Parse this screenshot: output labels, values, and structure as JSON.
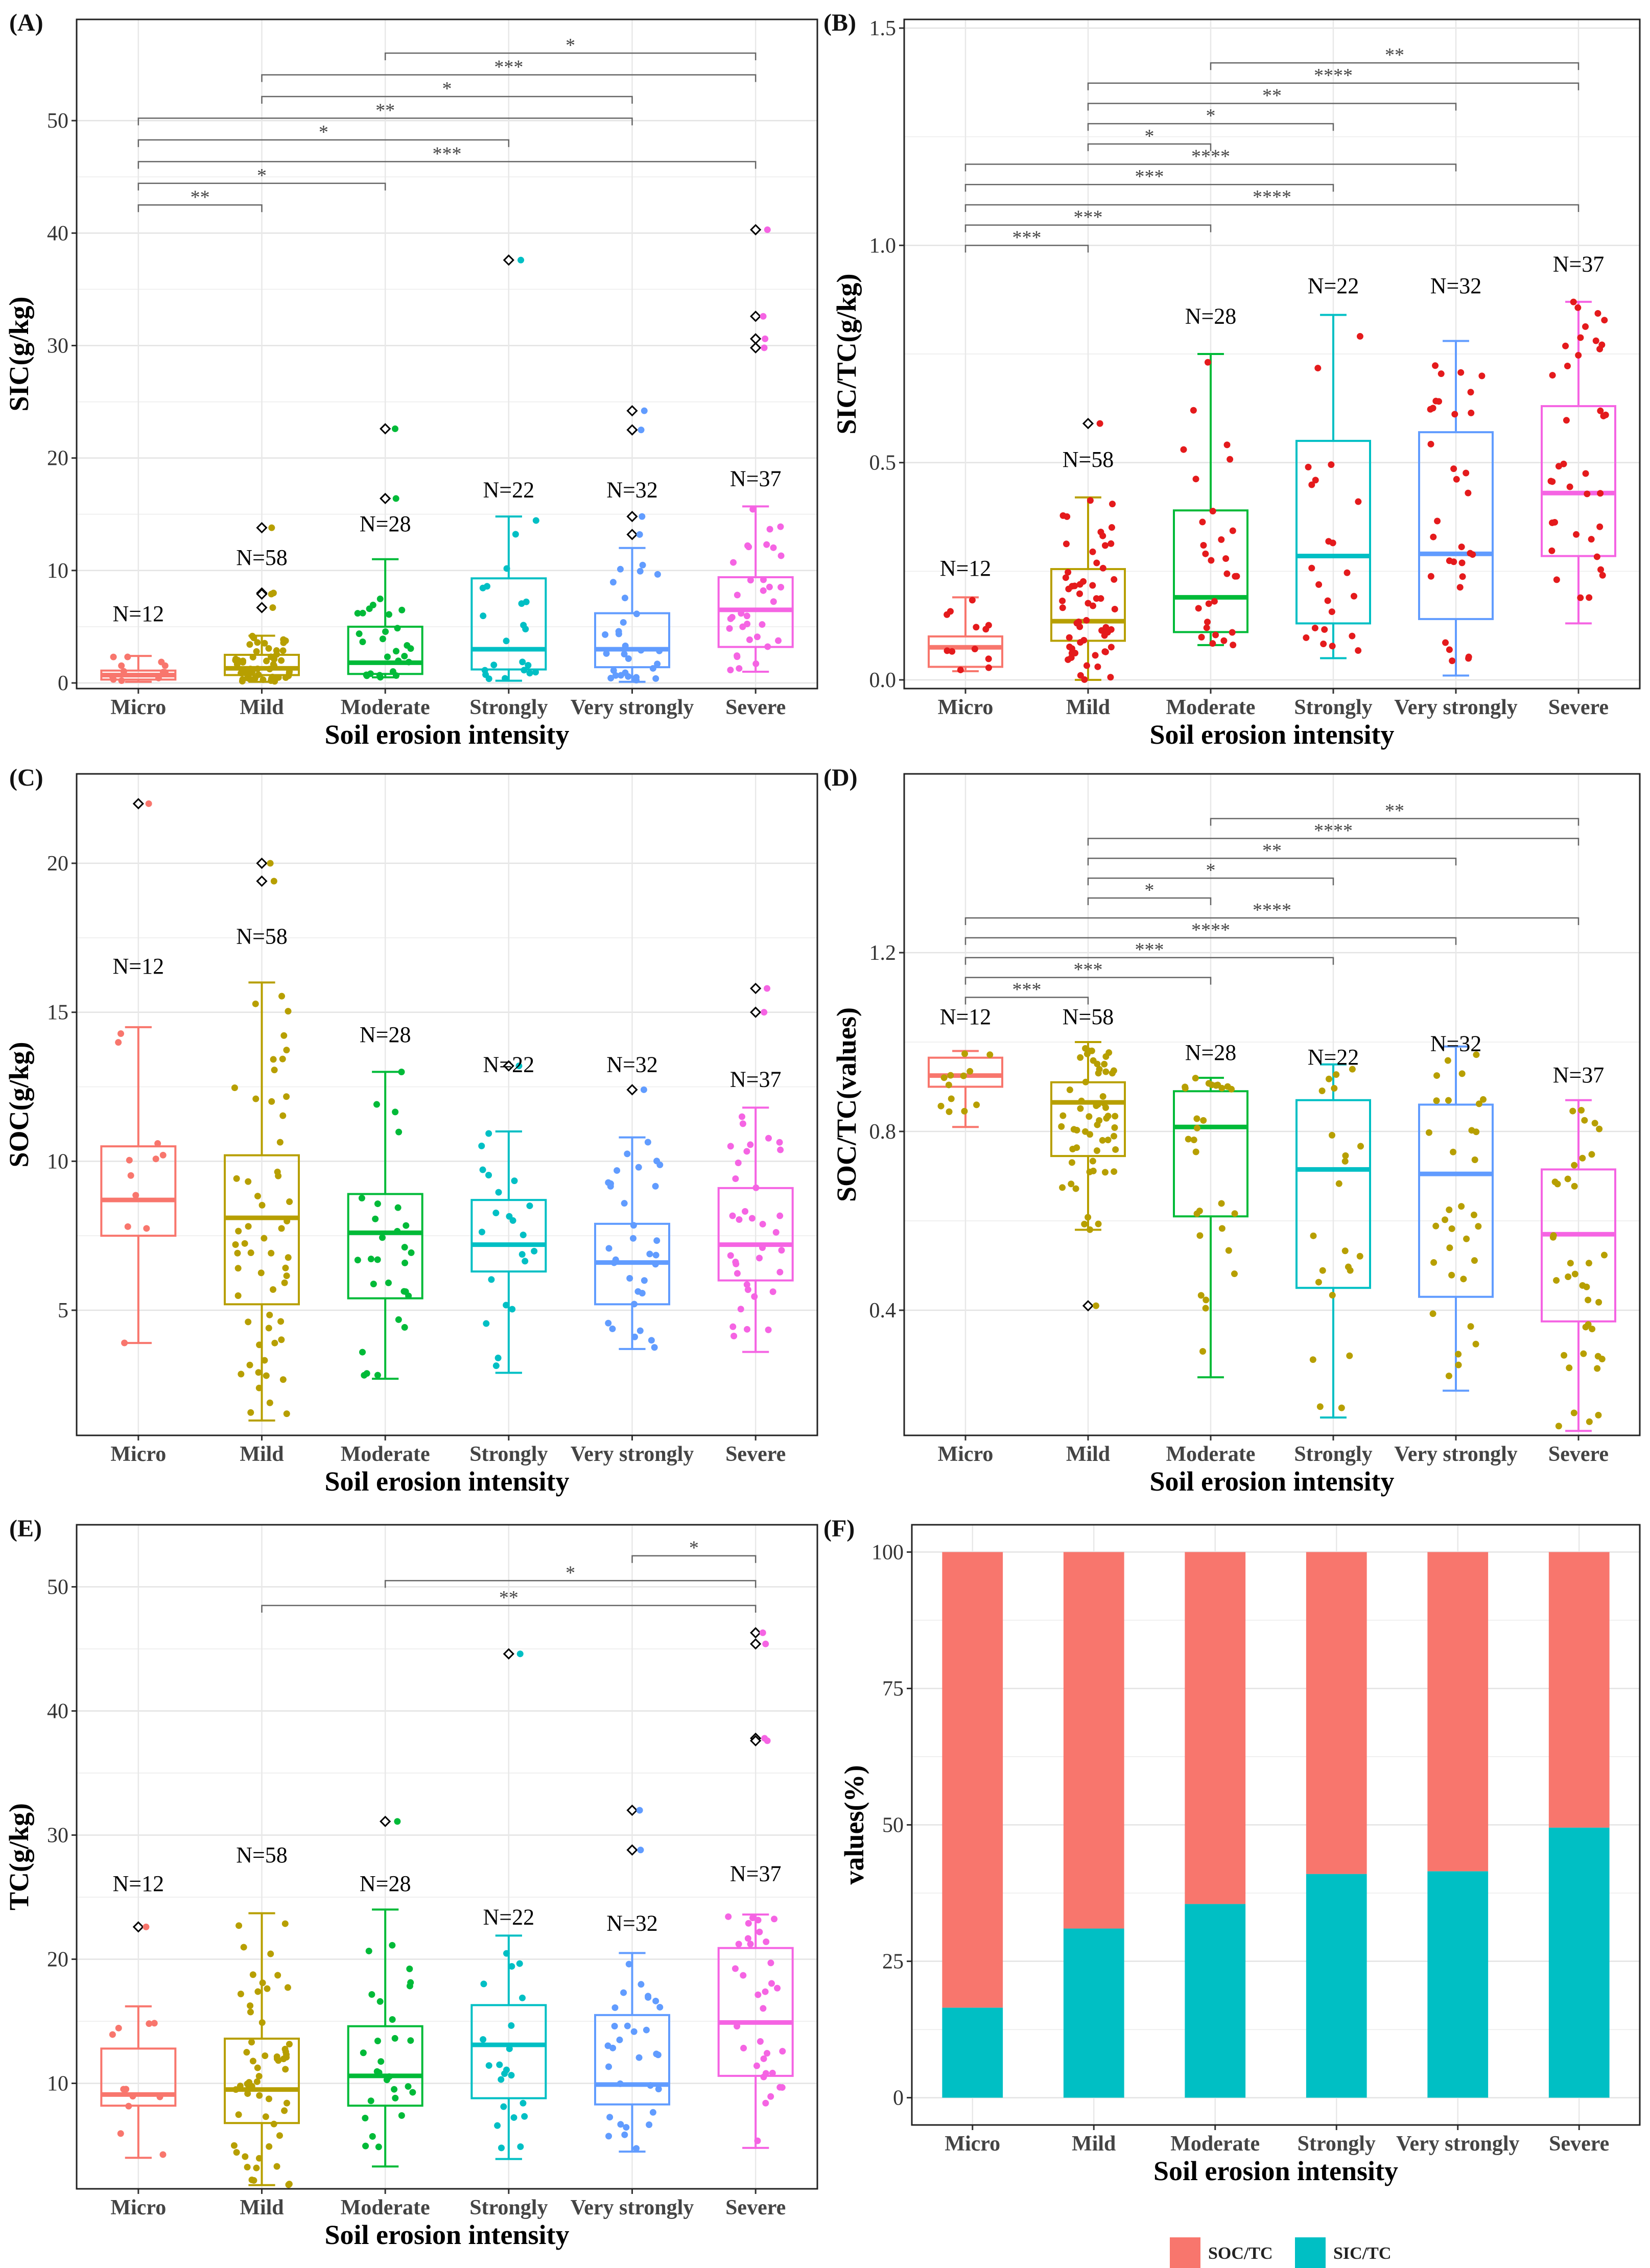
{
  "figure": {
    "categories": [
      "Micro",
      "Mild",
      "Moderate",
      "Strongly",
      "Very strongly",
      "Severe"
    ],
    "colors": [
      "#F8766D",
      "#B79F00",
      "#00BA38",
      "#00BFC4",
      "#619CFF",
      "#F564E3"
    ],
    "panel_B_point_color": "#E41A1C",
    "panel_D_point_color": "#B79F00",
    "n_counts": [
      "N=12",
      "N=58",
      "N=28",
      "N=22",
      "N=32",
      "N=37"
    ]
  },
  "chart_data": [
    {
      "panel": "(A)",
      "type": "box",
      "title": "(A)",
      "xlabel": "Soil erosion intensity",
      "ylabel": "SIC(g/kg)",
      "ylim": [
        -0.5,
        59
      ],
      "yticks": [
        0,
        10,
        20,
        30,
        40,
        50
      ],
      "n_label_y": [
        5.5,
        10.5,
        13.5,
        16.5,
        16.5,
        17.5
      ],
      "boxes": [
        {
          "q1": 0.3,
          "median": 0.7,
          "q3": 1.1,
          "wlo": 0.1,
          "whi": 2.4
        },
        {
          "q1": 0.7,
          "median": 1.3,
          "q3": 2.5,
          "wlo": 0.1,
          "whi": 4.2
        },
        {
          "q1": 0.8,
          "median": 1.8,
          "q3": 5.0,
          "wlo": 0.5,
          "whi": 11.0
        },
        {
          "q1": 1.2,
          "median": 3.0,
          "q3": 9.3,
          "wlo": 0.2,
          "whi": 14.8
        },
        {
          "q1": 1.4,
          "median": 3.0,
          "q3": 6.2,
          "wlo": 0.1,
          "whi": 12.0
        },
        {
          "q1": 3.2,
          "median": 6.5,
          "q3": 9.4,
          "wlo": 1.0,
          "whi": 15.7
        }
      ],
      "outliers": [
        [],
        [
          13.8,
          8.0,
          7.9,
          6.7
        ],
        [
          22.6,
          16.4
        ],
        [
          37.6
        ],
        [
          24.2,
          22.5,
          14.8,
          13.2
        ],
        [
          40.3,
          32.6,
          30.6,
          29.8
        ]
      ],
      "signif": [
        {
          "from": 3,
          "to": 6,
          "level": 0,
          "label": "*"
        },
        {
          "from": 2,
          "to": 6,
          "level": 1,
          "label": "***"
        },
        {
          "from": 2,
          "to": 5,
          "level": 2,
          "label": "*"
        },
        {
          "from": 1,
          "to": 5,
          "level": 3,
          "label": "**"
        },
        {
          "from": 1,
          "to": 4,
          "level": 4,
          "label": "*"
        },
        {
          "from": 1,
          "to": 6,
          "level": 5,
          "label": "***"
        },
        {
          "from": 1,
          "to": 3,
          "level": 6,
          "label": "*"
        },
        {
          "from": 1,
          "to": 2,
          "level": 7,
          "label": "**"
        }
      ],
      "sig_range": [
        56.0,
        42.5
      ]
    },
    {
      "panel": "(B)",
      "type": "box",
      "title": "(B)",
      "xlabel": "Soil erosion intensity",
      "ylabel": "SIC/TC(g/kg)",
      "ylim": [
        -0.02,
        1.52
      ],
      "yticks": [
        0.0,
        0.5,
        1.0,
        1.5
      ],
      "tick_decimals": 1,
      "n_label_y": [
        0.24,
        0.49,
        0.82,
        0.89,
        0.89,
        0.94
      ],
      "boxes": [
        {
          "q1": 0.03,
          "median": 0.075,
          "q3": 0.1,
          "wlo": 0.02,
          "whi": 0.19
        },
        {
          "q1": 0.09,
          "median": 0.135,
          "q3": 0.255,
          "wlo": 0.0,
          "whi": 0.42
        },
        {
          "q1": 0.11,
          "median": 0.19,
          "q3": 0.39,
          "wlo": 0.08,
          "whi": 0.75
        },
        {
          "q1": 0.13,
          "median": 0.285,
          "q3": 0.55,
          "wlo": 0.05,
          "whi": 0.84
        },
        {
          "q1": 0.14,
          "median": 0.29,
          "q3": 0.57,
          "wlo": 0.01,
          "whi": 0.78
        },
        {
          "q1": 0.285,
          "median": 0.43,
          "q3": 0.63,
          "wlo": 0.13,
          "whi": 0.87
        }
      ],
      "outliers": [
        [],
        [
          0.59
        ],
        [],
        [],
        [],
        []
      ],
      "signif": [
        {
          "from": 3,
          "to": 6,
          "level": 0,
          "label": "**"
        },
        {
          "from": 2,
          "to": 6,
          "level": 1,
          "label": "****"
        },
        {
          "from": 2,
          "to": 5,
          "level": 2,
          "label": "**"
        },
        {
          "from": 2,
          "to": 4,
          "level": 3,
          "label": "*"
        },
        {
          "from": 2,
          "to": 3,
          "level": 4,
          "label": "*"
        },
        {
          "from": 1,
          "to": 5,
          "level": 5,
          "label": "****"
        },
        {
          "from": 1,
          "to": 4,
          "level": 6,
          "label": "***"
        },
        {
          "from": 1,
          "to": 6,
          "level": 7,
          "label": "****"
        },
        {
          "from": 1,
          "to": 3,
          "level": 8,
          "label": "***"
        },
        {
          "from": 1,
          "to": 2,
          "level": 9,
          "label": "***"
        }
      ],
      "sig_range": [
        1.42,
        1.0
      ]
    },
    {
      "panel": "(C)",
      "type": "box",
      "title": "(C)",
      "xlabel": "Soil erosion intensity",
      "ylabel": "SOC(g/kg)",
      "ylim": [
        0.8,
        23.0
      ],
      "yticks": [
        5,
        10,
        15,
        20
      ],
      "n_label_y": [
        16.3,
        17.3,
        14.0,
        13.0,
        13.0,
        12.5
      ],
      "boxes": [
        {
          "q1": 7.5,
          "median": 8.7,
          "q3": 10.5,
          "wlo": 3.9,
          "whi": 14.5
        },
        {
          "q1": 5.2,
          "median": 8.1,
          "q3": 10.2,
          "wlo": 1.3,
          "whi": 16.0
        },
        {
          "q1": 5.4,
          "median": 7.6,
          "q3": 8.9,
          "wlo": 2.7,
          "whi": 13.0
        },
        {
          "q1": 6.3,
          "median": 7.2,
          "q3": 8.7,
          "wlo": 2.9,
          "whi": 11.0
        },
        {
          "q1": 5.2,
          "median": 6.6,
          "q3": 7.9,
          "wlo": 3.7,
          "whi": 10.8
        },
        {
          "q1": 6.0,
          "median": 7.2,
          "q3": 9.1,
          "wlo": 3.6,
          "whi": 11.8
        }
      ],
      "outliers": [
        [
          22.0
        ],
        [
          20.0,
          19.4
        ],
        [],
        [
          13.2
        ],
        [
          12.4
        ],
        [
          15.8,
          15.0
        ]
      ],
      "signif": [],
      "sig_range": [
        0,
        0
      ]
    },
    {
      "panel": "(D)",
      "type": "box",
      "title": "(D)",
      "xlabel": "Soil erosion intensity",
      "ylabel": "SOC/TC(values)",
      "ylim": [
        0.12,
        1.6
      ],
      "yticks": [
        0.4,
        0.8,
        1.2
      ],
      "tick_decimals": 1,
      "n_label_y": [
        1.04,
        1.04,
        0.96,
        0.95,
        0.98,
        0.91
      ],
      "boxes": [
        {
          "q1": 0.9,
          "median": 0.925,
          "q3": 0.965,
          "wlo": 0.81,
          "whi": 0.98
        },
        {
          "q1": 0.745,
          "median": 0.865,
          "q3": 0.91,
          "wlo": 0.58,
          "whi": 1.0
        },
        {
          "q1": 0.61,
          "median": 0.81,
          "q3": 0.89,
          "wlo": 0.25,
          "whi": 0.92
        },
        {
          "q1": 0.45,
          "median": 0.715,
          "q3": 0.87,
          "wlo": 0.16,
          "whi": 0.95
        },
        {
          "q1": 0.43,
          "median": 0.705,
          "q3": 0.86,
          "wlo": 0.22,
          "whi": 0.99
        },
        {
          "q1": 0.375,
          "median": 0.57,
          "q3": 0.715,
          "wlo": 0.13,
          "whi": 0.87
        }
      ],
      "outliers": [
        [],
        [
          0.41
        ],
        [],
        [],
        [],
        []
      ],
      "signif": [
        {
          "from": 3,
          "to": 6,
          "level": 0,
          "label": "**"
        },
        {
          "from": 2,
          "to": 6,
          "level": 1,
          "label": "****"
        },
        {
          "from": 2,
          "to": 5,
          "level": 2,
          "label": "**"
        },
        {
          "from": 2,
          "to": 4,
          "level": 3,
          "label": "*"
        },
        {
          "from": 2,
          "to": 3,
          "level": 4,
          "label": "*"
        },
        {
          "from": 1,
          "to": 6,
          "level": 5,
          "label": "****"
        },
        {
          "from": 1,
          "to": 5,
          "level": 6,
          "label": "****"
        },
        {
          "from": 1,
          "to": 4,
          "level": 7,
          "label": "***"
        },
        {
          "from": 1,
          "to": 3,
          "level": 8,
          "label": "***"
        },
        {
          "from": 1,
          "to": 2,
          "level": 9,
          "label": "***"
        }
      ],
      "sig_range": [
        1.5,
        1.1
      ]
    },
    {
      "panel": "(E)",
      "type": "box",
      "title": "(E)",
      "xlabel": "Soil erosion intensity",
      "ylabel": "TC(g/kg)",
      "ylim": [
        1.5,
        55.0
      ],
      "yticks": [
        10,
        20,
        30,
        40,
        50
      ],
      "n_label_y": [
        25.5,
        27.8,
        25.5,
        22.8,
        22.3,
        26.3
      ],
      "boxes": [
        {
          "q1": 8.2,
          "median": 9.1,
          "q3": 12.8,
          "wlo": 4.0,
          "whi": 16.2
        },
        {
          "q1": 6.8,
          "median": 9.5,
          "q3": 13.6,
          "wlo": 1.8,
          "whi": 23.7
        },
        {
          "q1": 8.2,
          "median": 10.6,
          "q3": 14.6,
          "wlo": 3.3,
          "whi": 24.0
        },
        {
          "q1": 8.8,
          "median": 13.1,
          "q3": 16.3,
          "wlo": 3.9,
          "whi": 21.9
        },
        {
          "q1": 8.3,
          "median": 9.9,
          "q3": 15.5,
          "wlo": 4.5,
          "whi": 20.5
        },
        {
          "q1": 10.6,
          "median": 14.9,
          "q3": 20.9,
          "wlo": 4.8,
          "whi": 23.6
        }
      ],
      "outliers": [
        [
          22.6
        ],
        [],
        [
          31.1
        ],
        [
          44.6
        ],
        [
          32.0,
          28.8
        ],
        [
          46.3,
          45.4,
          37.8,
          37.6
        ]
      ],
      "signif": [
        {
          "from": 5,
          "to": 6,
          "level": 0,
          "label": "*"
        },
        {
          "from": 3,
          "to": 6,
          "level": 1,
          "label": "*"
        },
        {
          "from": 2,
          "to": 6,
          "level": 2,
          "label": "**"
        }
      ],
      "sig_range": [
        52.5,
        48.5
      ]
    },
    {
      "panel": "(F)",
      "type": "bar",
      "stacked": true,
      "title": "(F)",
      "xlabel": "Soil erosion intensity",
      "ylabel": "values(%)",
      "ylim": [
        -5,
        105
      ],
      "yticks": [
        0,
        25,
        50,
        75,
        100
      ],
      "categories": [
        "Micro",
        "Mild",
        "Moderate",
        "Strongly",
        "Very strongly",
        "Severe"
      ],
      "series": [
        {
          "name": "SIC/TC",
          "color": "#00BFC4",
          "values": [
            16.5,
            31,
            35.5,
            41,
            41.5,
            49.5
          ]
        },
        {
          "name": "SOC/TC",
          "color": "#F8766D",
          "values": [
            83.5,
            69,
            64.5,
            59,
            58.5,
            50.5
          ]
        }
      ],
      "legend": [
        "SOC/TC",
        "SIC/TC"
      ],
      "legend_position": "bottom"
    }
  ]
}
